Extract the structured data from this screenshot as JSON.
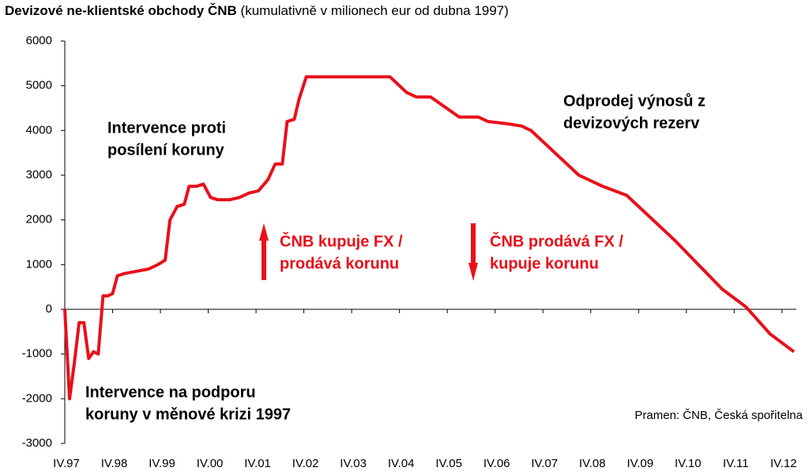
{
  "chart_data": {
    "type": "line",
    "title": "Devizové ne-klientské obchody ČNB",
    "subtitle": "(kumulativně v milionech eur od dubna 1997)",
    "source": "Pramen: ČNB, Česká spořitelna",
    "annotations": [
      {
        "lines": [
          "Intervence proti",
          "posílení koruny"
        ],
        "color": "#000000"
      },
      {
        "lines": [
          "Odprodej výnosů z",
          "devizových rezerv"
        ],
        "color": "#000000"
      },
      {
        "lines": [
          "Intervence na podporu",
          "koruny v měnové krizi 1997"
        ],
        "color": "#000000"
      },
      {
        "lines": [
          "ČNB kupuje FX /",
          "prodává korunu"
        ],
        "color": "#e8101a"
      },
      {
        "lines": [
          "ČNB prodává FX /",
          "kupuje korunu"
        ],
        "color": "#e8101a"
      }
    ],
    "x": [
      1997.25,
      1997.35,
      1997.45,
      1997.55,
      1997.65,
      1997.75,
      1997.85,
      1997.95,
      1998.05,
      1998.15,
      1998.25,
      1998.35,
      1998.5,
      1998.75,
      1999.0,
      1999.2,
      1999.35,
      1999.45,
      1999.6,
      1999.75,
      1999.85,
      2000.0,
      2000.15,
      2000.3,
      2000.45,
      2000.7,
      2000.9,
      2001.1,
      2001.3,
      2001.5,
      2001.65,
      2001.8,
      2001.9,
      2002.05,
      2002.15,
      2002.3,
      2004.05,
      2004.25,
      2004.4,
      2004.6,
      2004.9,
      2005.1,
      2005.3,
      2005.5,
      2005.9,
      2006.1,
      2006.5,
      2006.8,
      2007.0,
      2007.3,
      2008.0,
      2008.5,
      2009.0,
      2009.5,
      2010.0,
      2010.5,
      2011.0,
      2011.5,
      2012.0,
      2012.5
    ],
    "series": [
      {
        "name": "Devizové ne-klientské obchody ČNB",
        "color": "#e8101a",
        "values": [
          0,
          -2000,
          -1200,
          -300,
          -300,
          -1100,
          -950,
          -1000,
          300,
          300,
          350,
          750,
          800,
          850,
          900,
          1000,
          1100,
          2000,
          2300,
          2350,
          2750,
          2750,
          2800,
          2500,
          2450,
          2450,
          2500,
          2600,
          2650,
          2900,
          3250,
          3250,
          4200,
          4250,
          4700,
          5200,
          5200,
          5000,
          4850,
          4750,
          4750,
          4600,
          4450,
          4300,
          4300,
          4200,
          4150,
          4100,
          4000,
          3700,
          3000,
          2750,
          2550,
          2050,
          1550,
          1000,
          450,
          50,
          -550,
          -950
        ]
      }
    ],
    "xlim": [
      1997.25,
      2012.55
    ],
    "xticks": [
      {
        "value": 1997.25,
        "label": "IV.97"
      },
      {
        "value": 1998.25,
        "label": "IV.98"
      },
      {
        "value": 1999.25,
        "label": "IV.99"
      },
      {
        "value": 2000.25,
        "label": "IV.00"
      },
      {
        "value": 2001.25,
        "label": "IV.01"
      },
      {
        "value": 2002.25,
        "label": "IV.02"
      },
      {
        "value": 2003.25,
        "label": "IV.03"
      },
      {
        "value": 2004.25,
        "label": "IV.04"
      },
      {
        "value": 2005.25,
        "label": "IV.05"
      },
      {
        "value": 2006.25,
        "label": "IV.06"
      },
      {
        "value": 2007.25,
        "label": "IV.07"
      },
      {
        "value": 2008.25,
        "label": "IV.08"
      },
      {
        "value": 2009.25,
        "label": "IV.09"
      },
      {
        "value": 2010.25,
        "label": "IV.10"
      },
      {
        "value": 2011.25,
        "label": "IV.11"
      },
      {
        "value": 2012.25,
        "label": "IV.12"
      }
    ],
    "ylim": [
      -3000,
      6000
    ],
    "yticks": [
      6000,
      5000,
      4000,
      3000,
      2000,
      1000,
      0,
      -1000,
      -2000,
      -3000
    ],
    "grid": false
  }
}
